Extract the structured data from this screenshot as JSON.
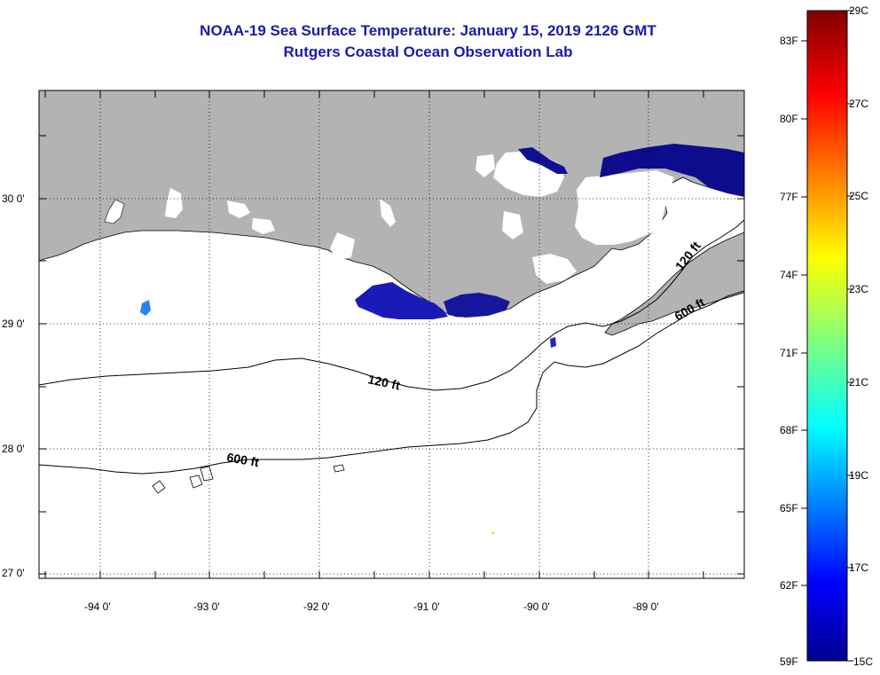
{
  "title": "NOAA-19 Sea Surface Temperature:  January 15, 2019 2126 GMT",
  "subtitle": "Rutgers Coastal Ocean Observation Lab",
  "map": {
    "lat_labels": [
      "30 0'",
      "29 0'",
      "28 0'",
      "27 0'"
    ],
    "lon_labels": [
      "-94 0'",
      "-93 0'",
      "-92 0'",
      "-91 0'",
      "-90 0'",
      "-89 0'"
    ],
    "contour_labels": {
      "c120_west": "120 ft",
      "c120_east": "120 ft",
      "c600_west": "600 ft",
      "c600_east": "600 ft"
    },
    "land_color": "#b3b3b3",
    "water_color": "#ffffff",
    "cloud_color": "#ffffff"
  },
  "colorbar": {
    "fahrenheit_labels": [
      "83F",
      "80F",
      "77F",
      "74F",
      "71F",
      "68F",
      "65F",
      "62F",
      "59F"
    ],
    "celsius_labels": [
      "29C",
      "27C",
      "25C",
      "23C",
      "21C",
      "19C",
      "17C",
      "15C"
    ],
    "min_c": 15,
    "max_c": 29
  }
}
